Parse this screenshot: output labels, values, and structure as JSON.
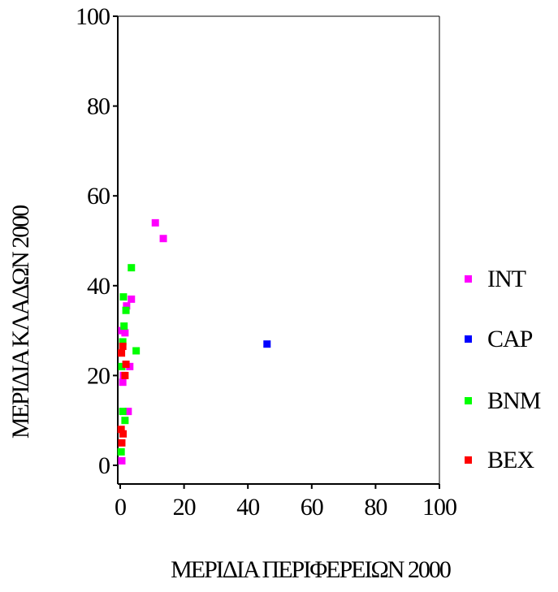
{
  "chart_data": {
    "type": "scatter",
    "xlabel": "ΜΕΡΙΔΙΑ ΠΕΡΙΦΕΡΕΙΩΝ 2000",
    "ylabel": "ΜΕΡΙΔΙΑ ΚΛΑΔΩΝ 2000",
    "xlim": [
      0,
      100
    ],
    "ylim": [
      0,
      100
    ],
    "xticks": [
      "0",
      "20",
      "40",
      "60",
      "80",
      "100"
    ],
    "yticks": [
      "0",
      "20",
      "40",
      "60",
      "80",
      "100"
    ],
    "grid": false,
    "legend_position": "right",
    "series": [
      {
        "name": "INT",
        "color": "#ff00ff",
        "points": [
          {
            "x": 11,
            "y": 54
          },
          {
            "x": 13.5,
            "y": 50.5
          },
          {
            "x": 3.5,
            "y": 37
          },
          {
            "x": 2,
            "y": 35.5
          },
          {
            "x": 1.5,
            "y": 29.5
          },
          {
            "x": 0.5,
            "y": 30
          },
          {
            "x": 3,
            "y": 22
          },
          {
            "x": 1,
            "y": 20
          },
          {
            "x": 0.8,
            "y": 18.5
          },
          {
            "x": 2.5,
            "y": 12
          },
          {
            "x": 0.5,
            "y": 1
          }
        ]
      },
      {
        "name": "CAP",
        "color": "#0000ff",
        "points": [
          {
            "x": 46,
            "y": 27
          }
        ]
      },
      {
        "name": "BNM",
        "color": "#00ff00",
        "points": [
          {
            "x": 3.5,
            "y": 44
          },
          {
            "x": 1,
            "y": 37.5
          },
          {
            "x": 1.8,
            "y": 34.5
          },
          {
            "x": 1.2,
            "y": 31
          },
          {
            "x": 0.8,
            "y": 27.5
          },
          {
            "x": 5,
            "y": 25.5
          },
          {
            "x": 0.5,
            "y": 22
          },
          {
            "x": 0.8,
            "y": 12
          },
          {
            "x": 1.5,
            "y": 10
          },
          {
            "x": 0.3,
            "y": 3
          }
        ]
      },
      {
        "name": "BEX",
        "color": "#ff0000",
        "points": [
          {
            "x": 0.8,
            "y": 26.5
          },
          {
            "x": 0.4,
            "y": 25
          },
          {
            "x": 1.8,
            "y": 22.5
          },
          {
            "x": 1.5,
            "y": 20
          },
          {
            "x": 0.3,
            "y": 8
          },
          {
            "x": 0.9,
            "y": 7
          },
          {
            "x": 0.5,
            "y": 5
          }
        ]
      }
    ]
  }
}
